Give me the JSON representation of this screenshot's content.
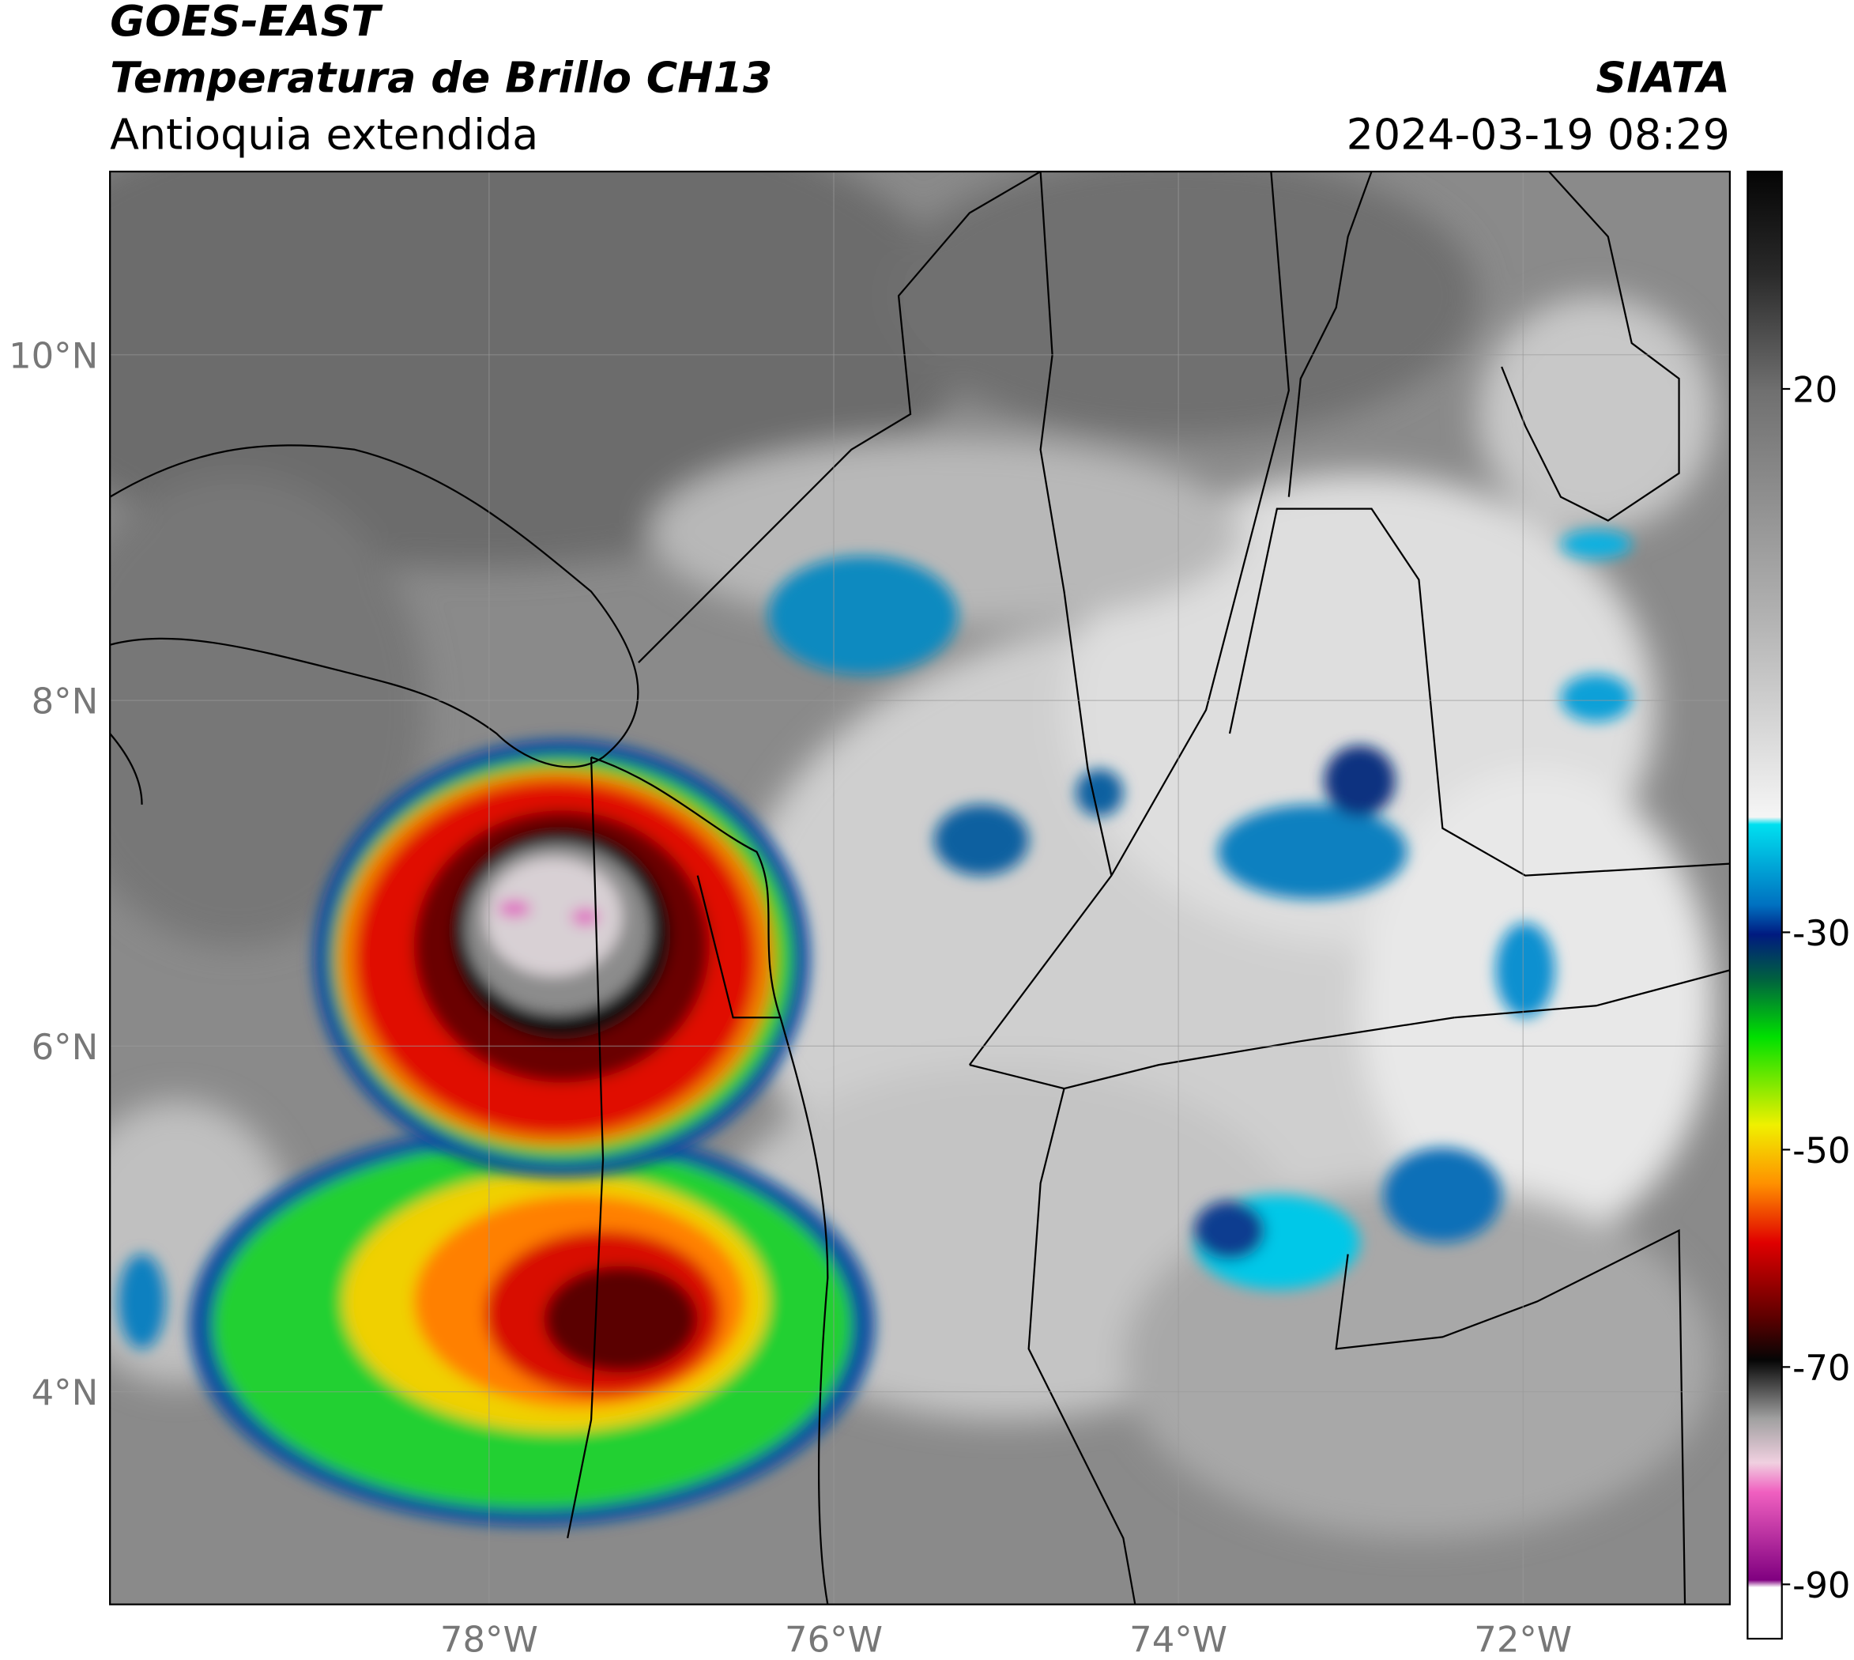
{
  "header": {
    "title": "GOES-EAST",
    "subtitle": "Temperatura de Brillo CH13",
    "region": "Antioquia extendida",
    "source": "SIATA",
    "datetime": "2024-03-19 08:29"
  },
  "map": {
    "lonlim": [
      -80.2,
      -70.8
    ],
    "latlim": [
      2.77,
      11.06
    ],
    "lon_ticks": [
      {
        "value": -78,
        "label": "78°W"
      },
      {
        "value": -76,
        "label": "76°W"
      },
      {
        "value": -74,
        "label": "74°W"
      },
      {
        "value": -72,
        "label": "72°W"
      }
    ],
    "lat_ticks": [
      {
        "value": 10,
        "label": "10°N"
      },
      {
        "value": 8,
        "label": "8°N"
      },
      {
        "value": 6,
        "label": "6°N"
      },
      {
        "value": 4,
        "label": "4°N"
      }
    ],
    "grid": true
  },
  "colorbar": {
    "lim": [
      -95,
      40
    ],
    "ticks": [
      20,
      -30,
      -50,
      -70,
      -90
    ]
  }
}
